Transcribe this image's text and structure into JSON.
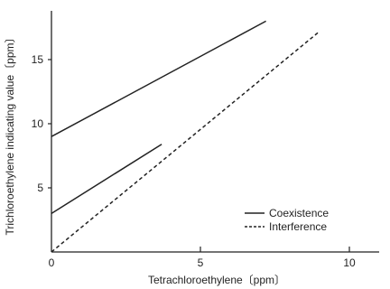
{
  "chart_data": {
    "type": "line",
    "xlabel": "Tetrachloroethylene〔ppm〕",
    "ylabel": "Trichloroethylene indicating value〔ppm〕",
    "xlim": [
      0,
      11
    ],
    "ylim": [
      0,
      18.8
    ],
    "x_ticks": [
      0,
      5,
      10
    ],
    "y_ticks": [
      5,
      10,
      15
    ],
    "grid": false,
    "legend_position": "bottom-right",
    "series": [
      {
        "name": "Coexistence",
        "style": "solid",
        "color": "#222222",
        "x": [
          0,
          7.2
        ],
        "y": [
          9,
          18
        ]
      },
      {
        "name": "",
        "style": "solid",
        "color": "#222222",
        "x": [
          0,
          3.7
        ],
        "y": [
          3,
          8.4
        ]
      },
      {
        "name": "Interference",
        "style": "dashed",
        "color": "#222222",
        "x": [
          0,
          9.0
        ],
        "y": [
          0,
          17.2
        ]
      }
    ]
  }
}
